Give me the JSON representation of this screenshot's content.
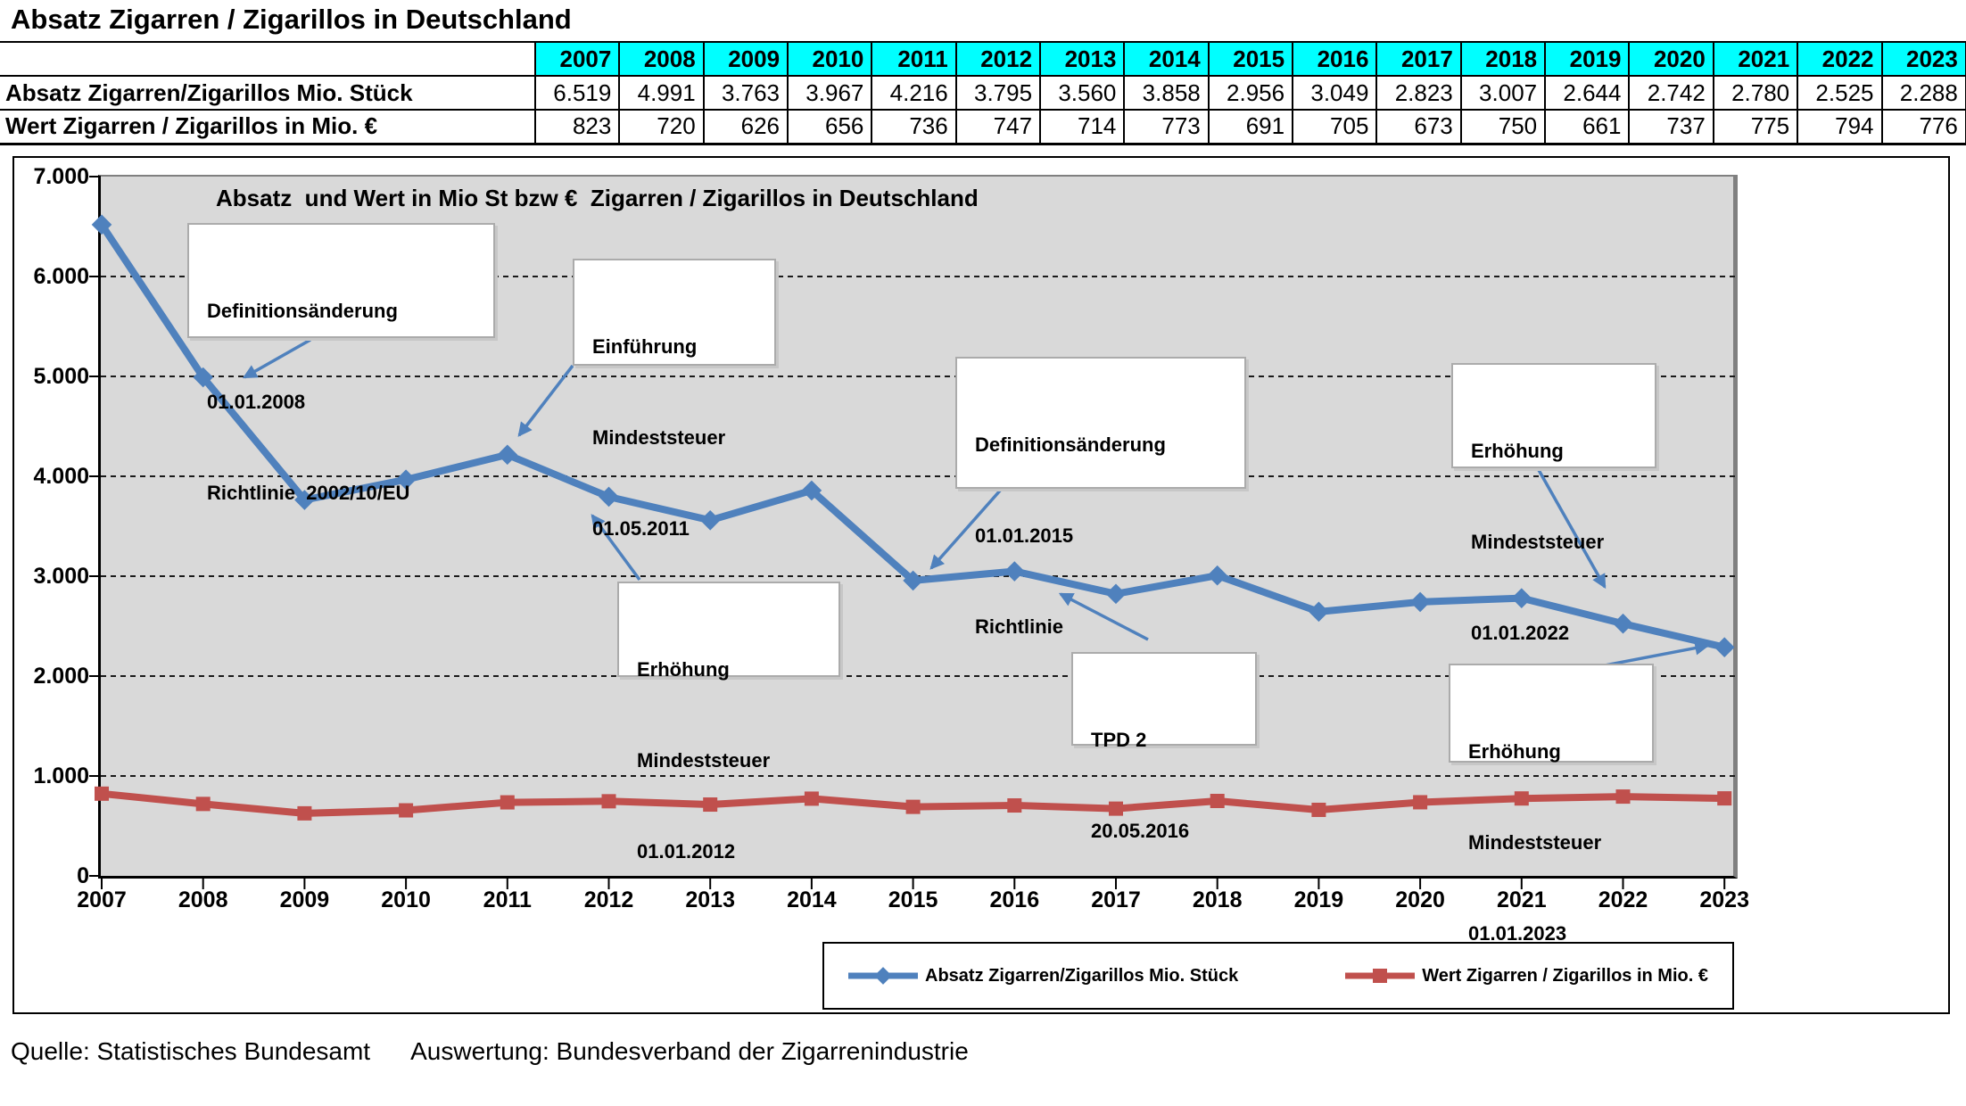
{
  "page_title": "Absatz Zigarren / Zigarillos in Deutschland",
  "table": {
    "years": [
      "2007",
      "2008",
      "2009",
      "2010",
      "2011",
      "2012",
      "2013",
      "2014",
      "2015",
      "2016",
      "2017",
      "2018",
      "2019",
      "2020",
      "2021",
      "2022",
      "2023"
    ],
    "rows": [
      {
        "label": "Absatz Zigarren/Zigarillos Mio. Stück",
        "values": [
          "6.519",
          "4.991",
          "3.763",
          "3.967",
          "4.216",
          "3.795",
          "3.560",
          "3.858",
          "2.956",
          "3.049",
          "2.823",
          "3.007",
          "2.644",
          "2.742",
          "2.780",
          "2.525",
          "2.288"
        ]
      },
      {
        "label": "Wert Zigarren / Zigarillos in Mio. €",
        "values": [
          "823",
          "720",
          "626",
          "656",
          "736",
          "747",
          "714",
          "773",
          "691",
          "705",
          "673",
          "750",
          "661",
          "737",
          "775",
          "794",
          "776"
        ]
      }
    ]
  },
  "chart_data": {
    "type": "line",
    "title": "Absatz  und Wert in Mio St bzw €  Zigarren / Zigarillos in Deutschland",
    "categories": [
      2007,
      2008,
      2009,
      2010,
      2011,
      2012,
      2013,
      2014,
      2015,
      2016,
      2017,
      2018,
      2019,
      2020,
      2021,
      2022,
      2023
    ],
    "series": [
      {
        "name": "Absatz Zigarren/Zigarillos Mio. Stück",
        "color": "#4F81BD",
        "marker": "diamond",
        "values": [
          6519,
          4991,
          3763,
          3967,
          4216,
          3795,
          3560,
          3858,
          2956,
          3049,
          2823,
          3007,
          2644,
          2742,
          2780,
          2525,
          2288
        ]
      },
      {
        "name": "Wert Zigarren / Zigarillos in Mio. €",
        "color": "#C0504D",
        "marker": "square",
        "values": [
          823,
          720,
          626,
          656,
          736,
          747,
          714,
          773,
          691,
          705,
          673,
          750,
          661,
          737,
          775,
          794,
          776
        ]
      }
    ],
    "ylim": [
      0,
      7000
    ],
    "ytick_step": 1000,
    "y_tick_labels": [
      "0",
      "1.000",
      "2.000",
      "3.000",
      "4.000",
      "5.000",
      "6.000",
      "7.000"
    ],
    "xlabel": "",
    "ylabel": "",
    "grid": "horizontal-dashed",
    "plot_background": "#D9D9D9",
    "legend_position": "bottom"
  },
  "annotations": [
    {
      "lines": [
        "Definitionsänderung",
        "01.01.2008",
        "Richtlinie  2002/10/EU"
      ]
    },
    {
      "lines": [
        "Einführung",
        "Mindeststeuer",
        "01.05.2011"
      ]
    },
    {
      "lines": [
        "Erhöhung",
        "Mindeststeuer",
        "01.01.2012"
      ]
    },
    {
      "lines": [
        "Definitionsänderung",
        "01.01.2015",
        "Richtlinie"
      ]
    },
    {
      "lines": [
        "TPD 2",
        "20.05.2016"
      ]
    },
    {
      "lines": [
        "Erhöhung",
        "Mindeststeuer",
        "01.01.2022"
      ]
    },
    {
      "lines": [
        "Erhöhung",
        "Mindeststeuer",
        "01.01.2023"
      ]
    }
  ],
  "colors": {
    "absatz_line": "#4F81BD",
    "wert_line": "#C0504D",
    "year_header_bg": "#00FFFF",
    "plot_bg": "#D9D9D9",
    "annotation_border": "#ABABAB"
  },
  "footer": {
    "source": "Quelle: Statistisches Bundesamt",
    "evaluation": "Auswertung: Bundesverband der Zigarrenindustrie"
  }
}
